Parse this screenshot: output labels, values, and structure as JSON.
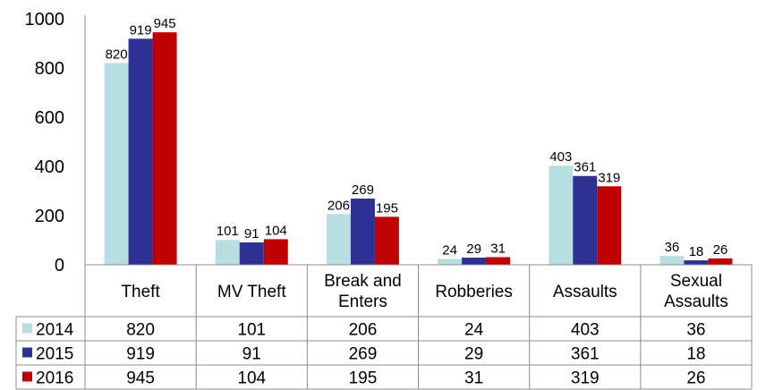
{
  "chart_data": {
    "type": "bar",
    "title": "",
    "xlabel": "",
    "ylabel": "",
    "ylim": [
      0,
      1000
    ],
    "yticks": [
      0,
      200,
      400,
      600,
      800,
      1000
    ],
    "grid": false,
    "legend": "data table, left",
    "categories": [
      [
        "Theft"
      ],
      [
        "MV Theft"
      ],
      [
        "Break and",
        "Enters"
      ],
      [
        "Robberies"
      ],
      [
        "Assaults"
      ],
      [
        "Sexual",
        "Assaults"
      ]
    ],
    "series": [
      {
        "name": "2014",
        "color": "#b7dee1",
        "values": [
          820,
          101,
          206,
          24,
          403,
          36
        ]
      },
      {
        "name": "2015",
        "color": "#2e3192",
        "values": [
          919,
          91,
          269,
          29,
          361,
          18
        ]
      },
      {
        "name": "2016",
        "color": "#c00000",
        "values": [
          945,
          104,
          195,
          31,
          319,
          26
        ]
      }
    ]
  }
}
